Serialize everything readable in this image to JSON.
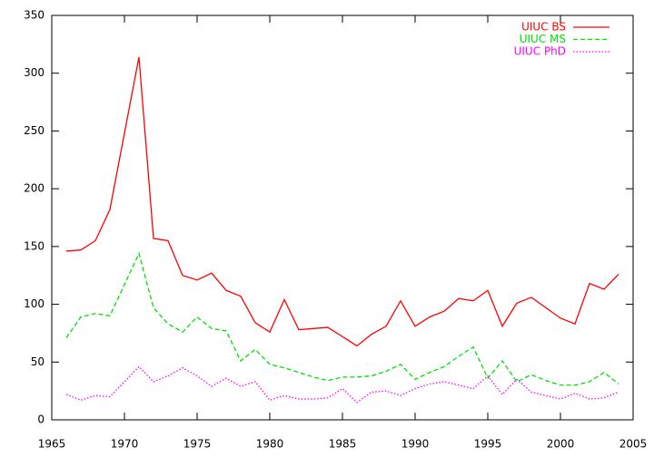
{
  "chart_data": {
    "type": "line",
    "x": [
      1966,
      1967,
      1968,
      1969,
      1970,
      1971,
      1972,
      1973,
      1974,
      1975,
      1976,
      1977,
      1978,
      1979,
      1980,
      1981,
      1982,
      1983,
      1984,
      1985,
      1986,
      1987,
      1988,
      1989,
      1990,
      1991,
      1992,
      1993,
      1994,
      1995,
      1996,
      1997,
      1998,
      1999,
      2000,
      2001,
      2002,
      2003,
      2004
    ],
    "series": [
      {
        "name": "UIUC BS",
        "color": "#ff0000",
        "dash": "solid",
        "values": [
          146,
          147,
          155,
          182,
          248,
          314,
          157,
          155,
          125,
          121,
          127,
          112,
          107,
          84,
          76,
          104,
          78,
          79,
          80,
          72,
          64,
          74,
          81,
          103,
          81,
          89,
          94,
          105,
          103,
          112,
          81,
          101,
          106,
          97,
          88,
          83,
          118,
          113,
          126
        ]
      },
      {
        "name": "UIUC MS",
        "color": "#00e000",
        "dash": "dashed",
        "values": [
          71,
          89,
          92,
          90,
          117,
          144,
          97,
          83,
          76,
          89,
          79,
          77,
          51,
          61,
          48,
          45,
          41,
          37,
          34,
          37,
          37,
          38,
          42,
          48,
          35,
          41,
          46,
          55,
          63,
          36,
          51,
          33,
          39,
          34,
          30,
          30,
          33,
          41,
          31
        ]
      },
      {
        "name": "UIUC PhD",
        "color": "#ff00ff",
        "dash": "dotted",
        "values": [
          22,
          17,
          21,
          20,
          33,
          46,
          33,
          38,
          45,
          38,
          29,
          36,
          29,
          33,
          17,
          21,
          18,
          18,
          19,
          27,
          15,
          24,
          25,
          21,
          27,
          31,
          33,
          30,
          27,
          38,
          22,
          35,
          24,
          21,
          18,
          23,
          18,
          19,
          24
        ]
      }
    ],
    "xlim": [
      1965,
      2005
    ],
    "xticks": [
      1965,
      1970,
      1975,
      1980,
      1985,
      1990,
      1995,
      2000,
      2005
    ],
    "ylim": [
      0,
      350
    ],
    "yticks": [
      0,
      50,
      100,
      150,
      200,
      250,
      300,
      350
    ],
    "legend": "top-right"
  }
}
